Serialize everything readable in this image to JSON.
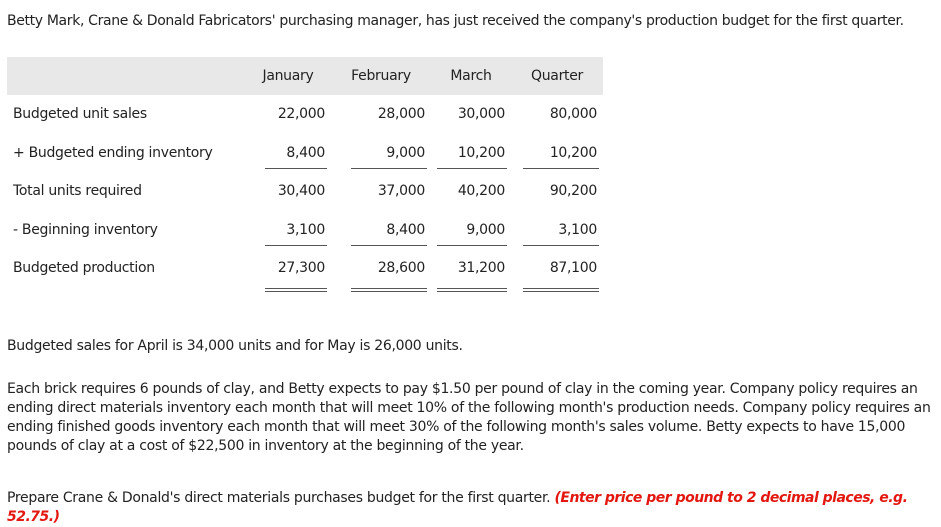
{
  "intro": "Betty Mark, Crane & Donald Fabricators' purchasing manager, has just received the company's production budget for the first quarter.",
  "table": {
    "headers": [
      "",
      "January",
      "February",
      "March",
      "Quarter"
    ],
    "rows": [
      {
        "label": "Budgeted unit sales",
        "values": [
          "22,000",
          "28,000",
          "30,000",
          "80,000"
        ]
      },
      {
        "label": "+ Budgeted ending inventory",
        "values": [
          "8,400",
          "9,000",
          "10,200",
          "10,200"
        ]
      },
      {
        "label": "Total units required",
        "values": [
          "30,400",
          "37,000",
          "40,200",
          "90,200"
        ]
      },
      {
        "label": "- Beginning inventory",
        "values": [
          "3,100",
          "8,400",
          "9,000",
          "3,100"
        ]
      },
      {
        "label": "Budgeted production",
        "values": [
          "27,300",
          "28,600",
          "31,200",
          "87,100"
        ]
      }
    ]
  },
  "para1": "Budgeted sales for April is 34,000 units and for May is 26,000 units.",
  "para2": "Each brick requires 6 pounds of clay, and Betty expects to pay $1.50 per pound of clay in the coming year. Company policy requires an ending direct materials inventory each month that will meet 10% of the following month's production needs. Company policy requires an ending finished goods inventory each month that will meet 30% of the following month's sales volume. Betty expects to have 15,000 pounds of clay at a cost of $22,500 in inventory at the beginning of the year.",
  "para3_main": "Prepare Crane & Donald's direct materials purchases budget for the first quarter.",
  "para3_instruction": "(Enter price per pound to 2 decimal places, e.g. 52.75.)"
}
